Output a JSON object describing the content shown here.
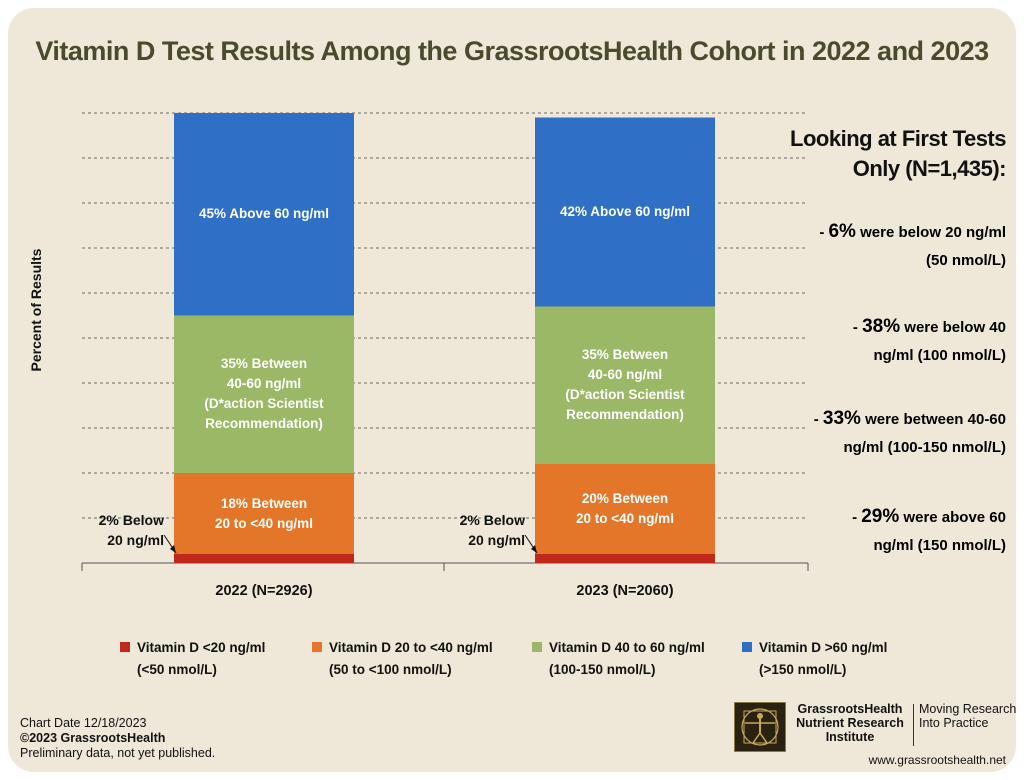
{
  "title": "Vitamin D Test Results Among the GrassrootsHealth Cohort in 2022 and 2023",
  "colors": {
    "below20": "#c0281c",
    "b20_40": "#e37628",
    "b40_60": "#9ab865",
    "above60": "#2f6fc6",
    "background": "#efe8d9"
  },
  "chart_data": {
    "type": "bar",
    "stacked": true,
    "ylabel": "Percent of Results",
    "xlabel": "",
    "ylim": [
      0,
      100
    ],
    "grid": true,
    "categories": [
      "2022 (N=2926)",
      "2023 (N=2060)"
    ],
    "series": [
      {
        "name": "Vitamin D <20 ng/ml (<50 nmol/L)",
        "color": "#c0281c",
        "values": [
          2,
          2
        ]
      },
      {
        "name": "Vitamin D 20 to <40 ng/ml (50 to <100 nmol/L)",
        "color": "#e37628",
        "values": [
          18,
          20
        ]
      },
      {
        "name": "Vitamin D 40 to 60 ng/ml (100-150 nmol/L)",
        "color": "#9ab865",
        "values": [
          35,
          35
        ]
      },
      {
        "name": "Vitamin D >60 ng/ml (>150 nmol/L)",
        "color": "#2f6fc6",
        "values": [
          45,
          42
        ]
      }
    ],
    "bar_labels": [
      {
        "above60": "45% Above 60 ng/ml",
        "b40_60": "35% Between\n40-60 ng/ml\n(D*action Scientist\nRecommendation)",
        "b20_40": "18% Between\n20 to <40 ng/ml",
        "below20": "2% Below\n20 ng/ml"
      },
      {
        "above60": "42% Above 60 ng/ml",
        "b40_60": "35% Between\n40-60 ng/ml\n(D*action Scientist\nRecommendation)",
        "b20_40": "20% Between\n20 to <40 ng/ml",
        "below20": "2% Below\n20 ng/ml"
      }
    ],
    "legend": [
      {
        "label": "Vitamin D <20 ng/ml",
        "sub": "(<50 nmol/L)",
        "color": "#c0281c"
      },
      {
        "label": "Vitamin D 20 to <40 ng/ml",
        "sub": "(50 to <100 nmol/L)",
        "color": "#e37628"
      },
      {
        "label": "Vitamin D 40 to 60 ng/ml",
        "sub": "(100-150 nmol/L)",
        "color": "#9ab865"
      },
      {
        "label": "Vitamin D >60 ng/ml",
        "sub": "(>150 nmol/L)",
        "color": "#2f6fc6"
      }
    ],
    "legend_position": "bottom"
  },
  "sidebar": {
    "heading": "Looking at First Tests Only (N=1,435):",
    "items": [
      {
        "pct": "6%",
        "text": "were below 20 ng/ml\n(50 nmol/L)"
      },
      {
        "pct": "38%",
        "text": "were below 40\nng/ml (100 nmol/L)"
      },
      {
        "pct": "33%",
        "text": "were between 40-60\nng/ml (100-150 nmol/L)"
      },
      {
        "pct": "29%",
        "text": "were above 60\nng/ml (150 nmol/L)"
      }
    ]
  },
  "footer": {
    "chart_date": "Chart Date 12/18/2023",
    "copyright": "©2023 GrassrootsHealth",
    "note": "Preliminary data, not yet published.",
    "org_name": "GrassrootsHealth Nutrient Research Institute",
    "tagline": "Moving Research Into Practice",
    "website": "www.grassrootshealth.net"
  }
}
